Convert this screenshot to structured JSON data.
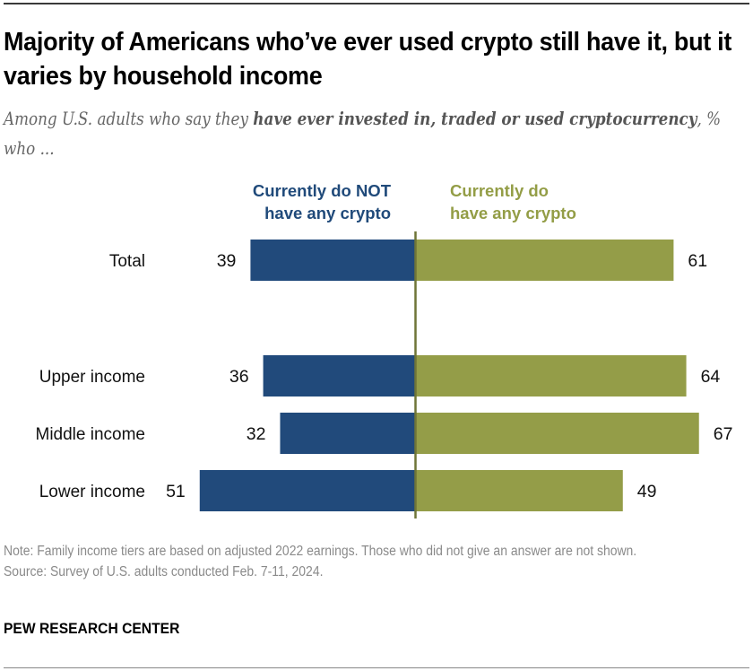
{
  "header": {
    "title": "Majority of Americans who’ve ever used crypto still have it, but it varies by household income",
    "subtitle_pre": "Among U.S. adults who say they ",
    "subtitle_bold": "have ever invested in, traded or used cryptocurrency",
    "subtitle_post": ", % who ..."
  },
  "footer": {
    "note": "Note: Family income tiers are based on adjusted 2022 earnings. Those who did not give an answer are not shown.",
    "source": "Source: Survey of U.S. adults conducted Feb. 7-11, 2024.",
    "brand": "PEW RESEARCH CENTER"
  },
  "colors": {
    "not_have": "#214a7b",
    "have": "#949d48",
    "axis": "#6f7537"
  },
  "chart_data": {
    "type": "bar",
    "orientation": "horizontal-diverging",
    "title": "Majority of Americans who’ve ever used crypto still have it, but it varies by household income",
    "xlabel": "",
    "ylabel": "",
    "unit": "%",
    "grid": false,
    "legend_position": "top",
    "categories": [
      "Total",
      "Upper income",
      "Middle income",
      "Lower income"
    ],
    "series": [
      {
        "name": "Currently do NOT have any crypto",
        "legend_line1": "Currently do NOT",
        "legend_line2": "have any crypto",
        "direction": "left",
        "values": [
          39,
          36,
          32,
          51
        ]
      },
      {
        "name": "Currently do have any crypto",
        "legend_line1": "Currently do",
        "legend_line2": "have any crypto",
        "direction": "right",
        "values": [
          61,
          64,
          67,
          49
        ]
      }
    ]
  }
}
